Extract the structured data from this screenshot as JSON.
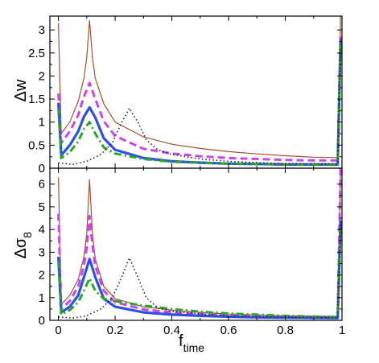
{
  "chart_data": [
    {
      "panel": "top",
      "type": "line",
      "ylabel": "Δw",
      "xlim": [
        -0.03,
        1.0
      ],
      "ylim": [
        0,
        3.3
      ],
      "yticks": [
        0,
        0.5,
        1,
        1.5,
        2,
        2.5,
        3
      ],
      "ytick_labels": [
        "0",
        "0.5",
        "1",
        "1.5",
        "2",
        "2.5",
        "3"
      ],
      "grid": false,
      "series": [
        {
          "color": "#a0522d",
          "style": "solid-thin",
          "points": [
            [
              0,
              3.15
            ],
            [
              0.01,
              0.75
            ],
            [
              0.04,
              1.0
            ],
            [
              0.07,
              1.45
            ],
            [
              0.09,
              1.95
            ],
            [
              0.1,
              2.4
            ],
            [
              0.11,
              3.2
            ],
            [
              0.12,
              2.4
            ],
            [
              0.13,
              1.95
            ],
            [
              0.16,
              1.4
            ],
            [
              0.2,
              1.0
            ],
            [
              0.3,
              0.68
            ],
            [
              0.4,
              0.52
            ],
            [
              0.5,
              0.43
            ],
            [
              0.6,
              0.36
            ],
            [
              0.7,
              0.31
            ],
            [
              0.8,
              0.27
            ],
            [
              0.9,
              0.24
            ],
            [
              0.985,
              0.23
            ],
            [
              0.995,
              3.3
            ]
          ]
        },
        {
          "color": "#cc44ee",
          "style": "dashed",
          "points": [
            [
              0,
              1.62
            ],
            [
              0.01,
              0.55
            ],
            [
              0.04,
              0.8
            ],
            [
              0.07,
              1.15
            ],
            [
              0.09,
              1.55
            ],
            [
              0.11,
              1.85
            ],
            [
              0.13,
              1.5
            ],
            [
              0.16,
              1.02
            ],
            [
              0.2,
              0.7
            ],
            [
              0.3,
              0.42
            ],
            [
              0.4,
              0.32
            ],
            [
              0.5,
              0.26
            ],
            [
              0.6,
              0.22
            ],
            [
              0.7,
              0.2
            ],
            [
              0.8,
              0.18
            ],
            [
              0.9,
              0.17
            ],
            [
              0.985,
              0.17
            ],
            [
              0.995,
              2.9
            ]
          ]
        },
        {
          "color": "#2b50e6",
          "style": "solid-thick",
          "points": [
            [
              0,
              1.42
            ],
            [
              0.01,
              0.28
            ],
            [
              0.04,
              0.5
            ],
            [
              0.07,
              0.8
            ],
            [
              0.09,
              1.12
            ],
            [
              0.11,
              1.32
            ],
            [
              0.13,
              1.1
            ],
            [
              0.16,
              0.65
            ],
            [
              0.2,
              0.4
            ],
            [
              0.3,
              0.22
            ],
            [
              0.4,
              0.15
            ],
            [
              0.5,
              0.12
            ],
            [
              0.6,
              0.1
            ],
            [
              0.7,
              0.09
            ],
            [
              0.8,
              0.08
            ],
            [
              0.9,
              0.08
            ],
            [
              0.985,
              0.08
            ],
            [
              0.995,
              2.8
            ]
          ]
        },
        {
          "color": "#2aa52a",
          "style": "dashdot",
          "points": [
            [
              0,
              1.3
            ],
            [
              0.01,
              0.22
            ],
            [
              0.04,
              0.35
            ],
            [
              0.07,
              0.58
            ],
            [
              0.09,
              0.85
            ],
            [
              0.11,
              1.0
            ],
            [
              0.13,
              0.75
            ],
            [
              0.16,
              0.45
            ],
            [
              0.2,
              0.32
            ],
            [
              0.3,
              0.2
            ],
            [
              0.4,
              0.14
            ],
            [
              0.5,
              0.12
            ],
            [
              0.6,
              0.1
            ],
            [
              0.7,
              0.09
            ],
            [
              0.8,
              0.08
            ],
            [
              0.9,
              0.08
            ],
            [
              0.985,
              0.07
            ],
            [
              0.995,
              2.8
            ]
          ]
        },
        {
          "color": "#222222",
          "style": "dotted",
          "points": [
            [
              0,
              0.12
            ],
            [
              0.05,
              0.08
            ],
            [
              0.1,
              0.15
            ],
            [
              0.15,
              0.3
            ],
            [
              0.19,
              0.55
            ],
            [
              0.22,
              0.95
            ],
            [
              0.25,
              1.3
            ],
            [
              0.28,
              1.0
            ],
            [
              0.31,
              0.62
            ],
            [
              0.35,
              0.4
            ],
            [
              0.4,
              0.3
            ],
            [
              0.5,
              0.2
            ],
            [
              0.6,
              0.15
            ],
            [
              0.7,
              0.12
            ],
            [
              0.8,
              0.1
            ],
            [
              0.9,
              0.1
            ],
            [
              0.985,
              0.09
            ],
            [
              0.995,
              2.6
            ]
          ]
        }
      ]
    },
    {
      "panel": "bottom",
      "type": "line",
      "ylabel": "Δσ8",
      "ylabel_main": "Δσ",
      "ylabel_sub": "8",
      "xlabel": "ftime",
      "xlabel_main": "f",
      "xlabel_sub": "time",
      "xlim": [
        -0.03,
        1.0
      ],
      "ylim": [
        0,
        6.7
      ],
      "xticks": [
        0,
        0.2,
        0.4,
        0.6,
        0.8,
        1
      ],
      "xtick_labels": [
        "0",
        "0.2",
        "0.4",
        "0.6",
        "0.8",
        "1"
      ],
      "yticks": [
        0,
        1,
        2,
        3,
        4,
        5,
        6
      ],
      "ytick_labels": [
        "0",
        "1",
        "2",
        "3",
        "4",
        "5",
        "6"
      ],
      "grid": false,
      "series": [
        {
          "color": "#a0522d",
          "style": "solid-thin",
          "points": [
            [
              0,
              6.3
            ],
            [
              0.01,
              0.7
            ],
            [
              0.04,
              1.1
            ],
            [
              0.07,
              1.8
            ],
            [
              0.09,
              2.8
            ],
            [
              0.1,
              3.8
            ],
            [
              0.11,
              6.2
            ],
            [
              0.12,
              3.8
            ],
            [
              0.13,
              2.7
            ],
            [
              0.16,
              1.5
            ],
            [
              0.2,
              0.95
            ],
            [
              0.3,
              0.6
            ],
            [
              0.4,
              0.45
            ],
            [
              0.5,
              0.35
            ],
            [
              0.6,
              0.28
            ],
            [
              0.7,
              0.24
            ],
            [
              0.8,
              0.2
            ],
            [
              0.9,
              0.18
            ],
            [
              0.985,
              0.17
            ],
            [
              0.995,
              6.7
            ]
          ]
        },
        {
          "color": "#cc44ee",
          "style": "dashed",
          "points": [
            [
              0,
              4.7
            ],
            [
              0.01,
              0.5
            ],
            [
              0.04,
              0.85
            ],
            [
              0.07,
              1.5
            ],
            [
              0.09,
              2.4
            ],
            [
              0.1,
              3.2
            ],
            [
              0.11,
              4.6
            ],
            [
              0.12,
              3.3
            ],
            [
              0.13,
              2.4
            ],
            [
              0.16,
              1.3
            ],
            [
              0.2,
              0.8
            ],
            [
              0.3,
              0.48
            ],
            [
              0.4,
              0.35
            ],
            [
              0.5,
              0.28
            ],
            [
              0.6,
              0.22
            ],
            [
              0.7,
              0.19
            ],
            [
              0.8,
              0.16
            ],
            [
              0.9,
              0.15
            ],
            [
              0.985,
              0.15
            ],
            [
              0.995,
              6.7
            ]
          ]
        },
        {
          "color": "#2b50e6",
          "style": "solid-thick",
          "points": [
            [
              0,
              2.8
            ],
            [
              0.01,
              0.35
            ],
            [
              0.04,
              0.6
            ],
            [
              0.07,
              1.1
            ],
            [
              0.09,
              1.9
            ],
            [
              0.11,
              2.7
            ],
            [
              0.13,
              1.9
            ],
            [
              0.16,
              0.95
            ],
            [
              0.2,
              0.6
            ],
            [
              0.3,
              0.35
            ],
            [
              0.4,
              0.25
            ],
            [
              0.5,
              0.2
            ],
            [
              0.6,
              0.16
            ],
            [
              0.7,
              0.13
            ],
            [
              0.8,
              0.12
            ],
            [
              0.9,
              0.11
            ],
            [
              0.985,
              0.1
            ],
            [
              0.995,
              4.4
            ]
          ]
        },
        {
          "color": "#2aa52a",
          "style": "dashdot",
          "points": [
            [
              0,
              2.6
            ],
            [
              0.01,
              0.25
            ],
            [
              0.04,
              0.45
            ],
            [
              0.07,
              0.8
            ],
            [
              0.09,
              1.3
            ],
            [
              0.11,
              1.85
            ],
            [
              0.13,
              1.3
            ],
            [
              0.16,
              0.95
            ],
            [
              0.2,
              0.85
            ],
            [
              0.3,
              0.65
            ],
            [
              0.4,
              0.5
            ],
            [
              0.5,
              0.38
            ],
            [
              0.6,
              0.3
            ],
            [
              0.7,
              0.25
            ],
            [
              0.8,
              0.2
            ],
            [
              0.9,
              0.17
            ],
            [
              0.985,
              0.15
            ],
            [
              0.995,
              4.0
            ]
          ]
        },
        {
          "color": "#222222",
          "style": "dotted",
          "points": [
            [
              0,
              0.15
            ],
            [
              0.05,
              0.1
            ],
            [
              0.1,
              0.2
            ],
            [
              0.15,
              0.5
            ],
            [
              0.19,
              1.0
            ],
            [
              0.22,
              1.8
            ],
            [
              0.25,
              2.75
            ],
            [
              0.28,
              1.9
            ],
            [
              0.31,
              1.0
            ],
            [
              0.35,
              0.55
            ],
            [
              0.4,
              0.4
            ],
            [
              0.5,
              0.28
            ],
            [
              0.6,
              0.2
            ],
            [
              0.7,
              0.16
            ],
            [
              0.8,
              0.14
            ],
            [
              0.9,
              0.13
            ],
            [
              0.985,
              0.12
            ],
            [
              0.995,
              4.3
            ]
          ]
        }
      ]
    }
  ]
}
